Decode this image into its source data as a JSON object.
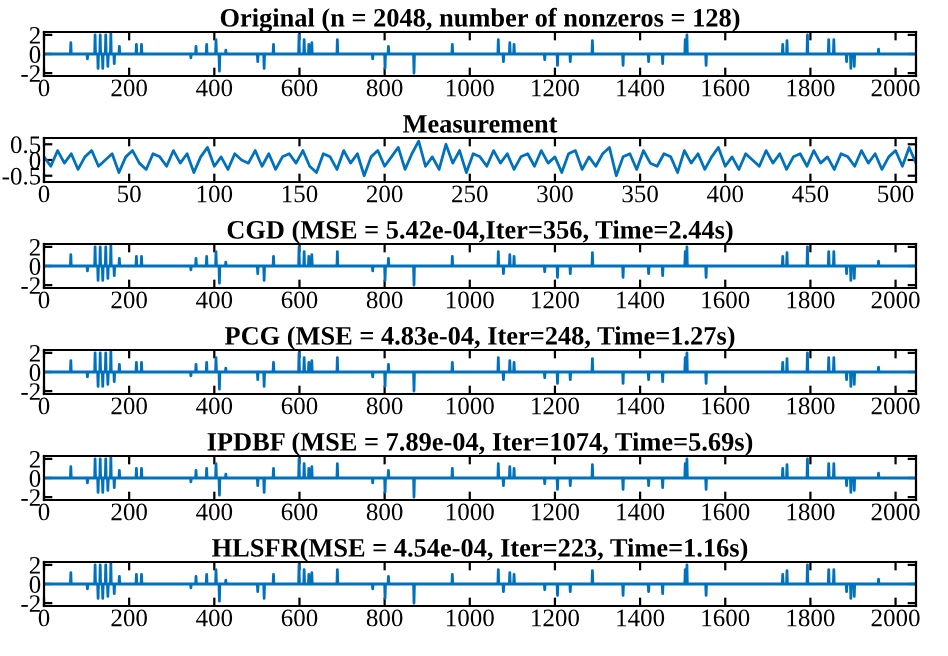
{
  "chart_data": [
    {
      "type": "line",
      "title": "Original (n = 2048, number of nonzeros = 128)",
      "xlim": [
        0,
        2048
      ],
      "xticks": [
        0,
        200,
        400,
        600,
        800,
        1000,
        1200,
        1400,
        1600,
        1800,
        2000
      ],
      "ylim": [
        -2.3,
        2.3
      ],
      "yticks": [
        -2,
        0,
        2
      ],
      "series": [
        {
          "color": "#0072bd",
          "x": [
            0,
            62,
            63,
            64,
            101,
            102,
            103,
            119,
            120,
            121,
            126,
            127,
            128,
            131,
            132,
            133,
            137,
            138,
            139,
            144,
            145,
            146,
            149,
            150,
            151,
            156,
            157,
            158,
            164,
            165,
            166,
            176,
            177,
            178,
            216,
            217,
            218,
            228,
            229,
            230,
            344,
            345,
            346,
            356,
            357,
            358,
            381,
            382,
            383,
            403,
            404,
            405,
            411,
            412,
            413,
            426,
            427,
            428,
            501,
            502,
            503,
            516,
            517,
            518,
            538,
            539,
            540,
            598,
            599,
            600,
            610,
            611,
            612,
            621,
            622,
            623,
            628,
            629,
            630,
            688,
            689,
            690,
            771,
            772,
            773,
            800,
            801,
            802,
            808,
            809,
            810,
            868,
            869,
            870,
            958,
            959,
            960,
            1066,
            1067,
            1068,
            1078,
            1079,
            1080,
            1093,
            1094,
            1095,
            1103,
            1104,
            1105,
            1175,
            1176,
            1177,
            1205,
            1206,
            1207,
            1235,
            1236,
            1237,
            1287,
            1288,
            1289,
            1359,
            1360,
            1361,
            1419,
            1420,
            1421,
            1452,
            1453,
            1454,
            1505,
            1506,
            1507,
            1509,
            1510,
            1511,
            1554,
            1555,
            1556,
            1734,
            1735,
            1736,
            1744,
            1745,
            1746,
            1792,
            1793,
            1794,
            1842,
            1843,
            1844,
            1854,
            1855,
            1856,
            1884,
            1885,
            1886,
            1894,
            1895,
            1896,
            1902,
            1903,
            1904,
            1959,
            1960,
            1961,
            2048
          ],
          "values": [
            0,
            0,
            1.2,
            0,
            0,
            -0.5,
            0,
            0,
            2,
            0,
            0,
            -1.5,
            0,
            0,
            2,
            0,
            0,
            -1.5,
            0,
            0,
            2,
            0,
            0,
            -1.3,
            0,
            0,
            2.2,
            0,
            0,
            -1,
            0,
            0,
            0.8,
            0,
            0,
            1,
            0,
            0,
            1,
            0,
            0,
            -0.4,
            0,
            0,
            0.8,
            0,
            0,
            1,
            0,
            0,
            1.5,
            0,
            0,
            -1.8,
            0,
            0,
            0.4,
            0,
            0,
            -0.8,
            0,
            0,
            -1.5,
            0,
            0,
            1,
            0,
            0,
            2,
            0,
            0,
            1.5,
            0,
            0,
            1,
            0,
            0,
            1.2,
            0,
            0,
            1.5,
            0,
            0,
            -0.5,
            0,
            0,
            -1.5,
            0,
            0,
            0.8,
            0,
            0,
            -2,
            0,
            0,
            1,
            0,
            0,
            1.5,
            0,
            0,
            -0.8,
            0,
            0,
            1.2,
            0,
            0,
            1,
            0,
            0,
            -0.6,
            0,
            0,
            -1.2,
            0,
            0,
            -0.8,
            0,
            0,
            1.4,
            0,
            0,
            -1.2,
            0,
            0,
            -0.8,
            0,
            0,
            -1,
            0,
            0,
            1.5,
            0,
            0,
            2,
            0,
            0,
            -1.2,
            0,
            0,
            1,
            0,
            0,
            1.4,
            0,
            0,
            2,
            0,
            0,
            1.5,
            0,
            0,
            1.5,
            0,
            0,
            -0.8,
            0,
            0,
            -1.5,
            0,
            0,
            -1.3,
            0,
            0,
            0.5,
            0,
            0
          ]
        }
      ]
    },
    {
      "type": "line",
      "title": "Measurement",
      "xlim": [
        0,
        512
      ],
      "xticks": [
        0,
        50,
        100,
        150,
        200,
        250,
        300,
        350,
        400,
        450,
        500
      ],
      "ylim": [
        -0.7,
        0.7
      ],
      "yticks": [
        -0.5,
        0,
        0.5
      ],
      "series": [
        {
          "color": "#0072bd",
          "x": [
            0,
            4,
            8,
            12,
            16,
            20,
            24,
            28,
            32,
            36,
            40,
            44,
            48,
            52,
            56,
            60,
            64,
            68,
            72,
            76,
            80,
            84,
            88,
            92,
            96,
            100,
            104,
            108,
            112,
            116,
            120,
            124,
            128,
            132,
            136,
            140,
            144,
            148,
            152,
            156,
            160,
            164,
            168,
            172,
            176,
            180,
            184,
            188,
            192,
            196,
            200,
            204,
            208,
            212,
            216,
            220,
            224,
            228,
            232,
            236,
            240,
            244,
            248,
            252,
            256,
            260,
            264,
            268,
            272,
            276,
            280,
            284,
            288,
            292,
            296,
            300,
            304,
            308,
            312,
            316,
            320,
            324,
            328,
            332,
            336,
            340,
            344,
            348,
            352,
            356,
            360,
            364,
            368,
            372,
            376,
            380,
            384,
            388,
            392,
            396,
            400,
            404,
            408,
            412,
            416,
            420,
            424,
            428,
            432,
            436,
            440,
            444,
            448,
            452,
            456,
            460,
            464,
            468,
            472,
            476,
            480,
            484,
            488,
            492,
            496,
            500,
            504,
            508,
            512
          ],
          "values": [
            0.1,
            -0.2,
            0.3,
            -0.1,
            0.2,
            -0.3,
            0.1,
            0.3,
            -0.2,
            0.0,
            0.2,
            -0.4,
            0.1,
            0.3,
            -0.1,
            -0.3,
            0.2,
            0.1,
            -0.2,
            0.3,
            -0.1,
            0.2,
            -0.4,
            0.1,
            0.4,
            -0.2,
            0.1,
            -0.3,
            0.2,
            0.0,
            -0.1,
            0.3,
            -0.2,
            0.2,
            -0.3,
            0.1,
            0.2,
            -0.1,
            0.3,
            -0.2,
            -0.4,
            0.2,
            0.1,
            -0.3,
            0.3,
            -0.1,
            0.2,
            -0.5,
            0.1,
            0.3,
            -0.2,
            0.1,
            0.4,
            -0.3,
            0.2,
            0.6,
            -0.2,
            0.1,
            -0.3,
            0.5,
            -0.1,
            0.3,
            -0.4,
            0.2,
            0.1,
            -0.2,
            0.3,
            -0.1,
            0.2,
            -0.3,
            0.1,
            0.2,
            -0.2,
            0.3,
            -0.1,
            0.1,
            -0.4,
            0.2,
            0.3,
            -0.3,
            0.1,
            -0.2,
            0.2,
            0.4,
            -0.5,
            0.1,
            0.2,
            -0.3,
            0.3,
            -0.1,
            -0.2,
            0.2,
            0.1,
            -0.4,
            0.3,
            -0.1,
            0.2,
            -0.3,
            0.1,
            0.4,
            -0.2,
            0.1,
            -0.3,
            0.2,
            0.0,
            -0.2,
            0.3,
            -0.1,
            0.2,
            -0.3,
            0.1,
            0.2,
            -0.2,
            0.3,
            -0.1,
            0.1,
            -0.3,
            0.2,
            0.1,
            -0.2,
            0.3,
            -0.1,
            0.2,
            -0.3,
            0.1,
            0.3,
            -0.2,
            0.4,
            -0.1
          ]
        }
      ]
    },
    {
      "type": "line",
      "title": "CGD (MSE = 5.42e-04,Iter=356, Time=2.44s)",
      "xlim": [
        0,
        2048
      ],
      "xticks": [
        0,
        200,
        400,
        600,
        800,
        1000,
        1200,
        1400,
        1600,
        1800,
        2000
      ],
      "ylim": [
        -2.3,
        2.3
      ],
      "yticks": [
        -2,
        0,
        2
      ],
      "series": [
        {
          "color": "#0072bd",
          "x": [
            0,
            62,
            63,
            64,
            101,
            102,
            103,
            119,
            120,
            121,
            126,
            127,
            128,
            131,
            132,
            133,
            137,
            138,
            139,
            144,
            145,
            146,
            149,
            150,
            151,
            156,
            157,
            158,
            164,
            165,
            166,
            176,
            177,
            178,
            216,
            217,
            218,
            228,
            229,
            230,
            344,
            345,
            346,
            356,
            357,
            358,
            381,
            382,
            383,
            403,
            404,
            405,
            411,
            412,
            413,
            426,
            427,
            428,
            501,
            502,
            503,
            516,
            517,
            518,
            538,
            539,
            540,
            598,
            599,
            600,
            610,
            611,
            612,
            621,
            622,
            623,
            628,
            629,
            630,
            688,
            689,
            690,
            771,
            772,
            773,
            800,
            801,
            802,
            808,
            809,
            810,
            868,
            869,
            870,
            958,
            959,
            960,
            1066,
            1067,
            1068,
            1078,
            1079,
            1080,
            1093,
            1094,
            1095,
            1103,
            1104,
            1105,
            1175,
            1176,
            1177,
            1205,
            1206,
            1207,
            1235,
            1236,
            1237,
            1287,
            1288,
            1289,
            1359,
            1360,
            1361,
            1419,
            1420,
            1421,
            1452,
            1453,
            1454,
            1505,
            1506,
            1507,
            1509,
            1510,
            1511,
            1554,
            1555,
            1556,
            1734,
            1735,
            1736,
            1744,
            1745,
            1746,
            1792,
            1793,
            1794,
            1842,
            1843,
            1844,
            1854,
            1855,
            1856,
            1884,
            1885,
            1886,
            1894,
            1895,
            1896,
            1902,
            1903,
            1904,
            1959,
            1960,
            1961,
            2048
          ],
          "values": [
            0,
            0,
            1.2,
            0,
            0,
            -0.5,
            0,
            0,
            2,
            0,
            0,
            -1.5,
            0,
            0,
            2,
            0,
            0,
            -1.5,
            0,
            0,
            2,
            0,
            0,
            -1.3,
            0,
            0,
            2.2,
            0,
            0,
            -1,
            0,
            0,
            0.8,
            0,
            0,
            1,
            0,
            0,
            1,
            0,
            0,
            -0.4,
            0,
            0,
            0.8,
            0,
            0,
            1,
            0,
            0,
            1.5,
            0,
            0,
            -1.8,
            0,
            0,
            0.4,
            0,
            0,
            -0.8,
            0,
            0,
            -1.5,
            0,
            0,
            1,
            0,
            0,
            2,
            0,
            0,
            1.5,
            0,
            0,
            1,
            0,
            0,
            1.2,
            0,
            0,
            1.5,
            0,
            0,
            -0.5,
            0,
            0,
            -1.5,
            0,
            0,
            0.8,
            0,
            0,
            -2,
            0,
            0,
            1,
            0,
            0,
            1.5,
            0,
            0,
            -0.8,
            0,
            0,
            1.2,
            0,
            0,
            1,
            0,
            0,
            -0.6,
            0,
            0,
            -1.2,
            0,
            0,
            -0.8,
            0,
            0,
            1.4,
            0,
            0,
            -1.2,
            0,
            0,
            -0.8,
            0,
            0,
            -1,
            0,
            0,
            1.5,
            0,
            0,
            2,
            0,
            0,
            -1.2,
            0,
            0,
            1,
            0,
            0,
            1.4,
            0,
            0,
            2,
            0,
            0,
            1.5,
            0,
            0,
            1.5,
            0,
            0,
            -0.8,
            0,
            0,
            -1.5,
            0,
            0,
            -1.3,
            0,
            0,
            0.5,
            0,
            0
          ]
        }
      ]
    },
    {
      "type": "line",
      "title": "PCG (MSE = 4.83e-04, Iter=248, Time=1.27s)",
      "xlim": [
        0,
        2048
      ],
      "xticks": [
        0,
        200,
        400,
        600,
        800,
        1000,
        1200,
        1400,
        1600,
        1800,
        2000
      ],
      "ylim": [
        -2.3,
        2.3
      ],
      "yticks": [
        -2,
        0,
        2
      ],
      "series": [
        {
          "color": "#0072bd",
          "x": [
            0,
            62,
            63,
            64,
            101,
            102,
            103,
            119,
            120,
            121,
            126,
            127,
            128,
            131,
            132,
            133,
            137,
            138,
            139,
            144,
            145,
            146,
            149,
            150,
            151,
            156,
            157,
            158,
            164,
            165,
            166,
            176,
            177,
            178,
            216,
            217,
            218,
            228,
            229,
            230,
            344,
            345,
            346,
            356,
            357,
            358,
            381,
            382,
            383,
            403,
            404,
            405,
            411,
            412,
            413,
            426,
            427,
            428,
            501,
            502,
            503,
            516,
            517,
            518,
            538,
            539,
            540,
            598,
            599,
            600,
            610,
            611,
            612,
            621,
            622,
            623,
            628,
            629,
            630,
            688,
            689,
            690,
            771,
            772,
            773,
            800,
            801,
            802,
            808,
            809,
            810,
            868,
            869,
            870,
            958,
            959,
            960,
            1066,
            1067,
            1068,
            1078,
            1079,
            1080,
            1093,
            1094,
            1095,
            1103,
            1104,
            1105,
            1175,
            1176,
            1177,
            1205,
            1206,
            1207,
            1235,
            1236,
            1237,
            1287,
            1288,
            1289,
            1359,
            1360,
            1361,
            1419,
            1420,
            1421,
            1452,
            1453,
            1454,
            1505,
            1506,
            1507,
            1509,
            1510,
            1511,
            1554,
            1555,
            1556,
            1734,
            1735,
            1736,
            1744,
            1745,
            1746,
            1792,
            1793,
            1794,
            1842,
            1843,
            1844,
            1854,
            1855,
            1856,
            1884,
            1885,
            1886,
            1894,
            1895,
            1896,
            1902,
            1903,
            1904,
            1959,
            1960,
            1961,
            2048
          ],
          "values": [
            0,
            0,
            1.2,
            0,
            0,
            -0.5,
            0,
            0,
            2,
            0,
            0,
            -1.5,
            0,
            0,
            2,
            0,
            0,
            -1.5,
            0,
            0,
            2,
            0,
            0,
            -1.3,
            0,
            0,
            2.2,
            0,
            0,
            -1,
            0,
            0,
            0.8,
            0,
            0,
            1,
            0,
            0,
            1,
            0,
            0,
            -0.4,
            0,
            0,
            0.8,
            0,
            0,
            1,
            0,
            0,
            1.5,
            0,
            0,
            -1.8,
            0,
            0,
            0.4,
            0,
            0,
            -0.8,
            0,
            0,
            -1.5,
            0,
            0,
            1,
            0,
            0,
            2,
            0,
            0,
            1.5,
            0,
            0,
            1,
            0,
            0,
            1.2,
            0,
            0,
            1.5,
            0,
            0,
            -0.5,
            0,
            0,
            -1.5,
            0,
            0,
            0.8,
            0,
            0,
            -2,
            0,
            0,
            1,
            0,
            0,
            1.5,
            0,
            0,
            -0.8,
            0,
            0,
            1.2,
            0,
            0,
            1,
            0,
            0,
            -0.6,
            0,
            0,
            -1.2,
            0,
            0,
            -0.8,
            0,
            0,
            1.4,
            0,
            0,
            -1.2,
            0,
            0,
            -0.8,
            0,
            0,
            -1,
            0,
            0,
            1.5,
            0,
            0,
            2,
            0,
            0,
            -1.2,
            0,
            0,
            1,
            0,
            0,
            1.4,
            0,
            0,
            2,
            0,
            0,
            1.5,
            0,
            0,
            1.5,
            0,
            0,
            -0.8,
            0,
            0,
            -1.5,
            0,
            0,
            -1.3,
            0,
            0,
            0.5,
            0,
            0
          ]
        }
      ]
    },
    {
      "type": "line",
      "title": "IPDBF (MSE = 7.89e-04, Iter=1074, Time=5.69s)",
      "xlim": [
        0,
        2048
      ],
      "xticks": [
        0,
        200,
        400,
        600,
        800,
        1000,
        1200,
        1400,
        1600,
        1800,
        2000
      ],
      "ylim": [
        -2.3,
        2.3
      ],
      "yticks": [
        -2,
        0,
        2
      ],
      "series": [
        {
          "color": "#0072bd",
          "x": [
            0,
            62,
            63,
            64,
            101,
            102,
            103,
            119,
            120,
            121,
            126,
            127,
            128,
            131,
            132,
            133,
            137,
            138,
            139,
            144,
            145,
            146,
            149,
            150,
            151,
            156,
            157,
            158,
            164,
            165,
            166,
            176,
            177,
            178,
            216,
            217,
            218,
            228,
            229,
            230,
            344,
            345,
            346,
            356,
            357,
            358,
            381,
            382,
            383,
            403,
            404,
            405,
            411,
            412,
            413,
            426,
            427,
            428,
            501,
            502,
            503,
            516,
            517,
            518,
            538,
            539,
            540,
            598,
            599,
            600,
            610,
            611,
            612,
            621,
            622,
            623,
            628,
            629,
            630,
            688,
            689,
            690,
            771,
            772,
            773,
            800,
            801,
            802,
            808,
            809,
            810,
            868,
            869,
            870,
            958,
            959,
            960,
            1066,
            1067,
            1068,
            1078,
            1079,
            1080,
            1093,
            1094,
            1095,
            1103,
            1104,
            1105,
            1175,
            1176,
            1177,
            1205,
            1206,
            1207,
            1235,
            1236,
            1237,
            1287,
            1288,
            1289,
            1359,
            1360,
            1361,
            1419,
            1420,
            1421,
            1452,
            1453,
            1454,
            1505,
            1506,
            1507,
            1509,
            1510,
            1511,
            1554,
            1555,
            1556,
            1734,
            1735,
            1736,
            1744,
            1745,
            1746,
            1792,
            1793,
            1794,
            1842,
            1843,
            1844,
            1854,
            1855,
            1856,
            1884,
            1885,
            1886,
            1894,
            1895,
            1896,
            1902,
            1903,
            1904,
            1959,
            1960,
            1961,
            2048
          ],
          "values": [
            0,
            0,
            1.2,
            0,
            0,
            -0.5,
            0,
            0,
            2,
            0,
            0,
            -1.5,
            0,
            0,
            2,
            0,
            0,
            -1.5,
            0,
            0,
            2,
            0,
            0,
            -1.3,
            0,
            0,
            2.2,
            0,
            0,
            -1,
            0,
            0,
            0.8,
            0,
            0,
            1,
            0,
            0,
            1,
            0,
            0,
            -0.4,
            0,
            0,
            0.8,
            0,
            0,
            1,
            0,
            0,
            1.5,
            0,
            0,
            -1.8,
            0,
            0,
            0.4,
            0,
            0,
            -0.8,
            0,
            0,
            -1.5,
            0,
            0,
            1,
            0,
            0,
            2,
            0,
            0,
            1.5,
            0,
            0,
            1,
            0,
            0,
            1.2,
            0,
            0,
            1.5,
            0,
            0,
            -0.5,
            0,
            0,
            -1.5,
            0,
            0,
            0.8,
            0,
            0,
            -2,
            0,
            0,
            1,
            0,
            0,
            1.5,
            0,
            0,
            -0.8,
            0,
            0,
            1.2,
            0,
            0,
            1,
            0,
            0,
            -0.6,
            0,
            0,
            -1.2,
            0,
            0,
            -0.8,
            0,
            0,
            1.4,
            0,
            0,
            -1.2,
            0,
            0,
            -0.8,
            0,
            0,
            -1,
            0,
            0,
            1.5,
            0,
            0,
            2,
            0,
            0,
            -1.2,
            0,
            0,
            1,
            0,
            0,
            1.4,
            0,
            0,
            2,
            0,
            0,
            1.5,
            0,
            0,
            1.5,
            0,
            0,
            -0.8,
            0,
            0,
            -1.5,
            0,
            0,
            -1.3,
            0,
            0,
            0.5,
            0,
            0
          ]
        }
      ]
    },
    {
      "type": "line",
      "title": "HLSFR(MSE = 4.54e-04, Iter=223, Time=1.16s)",
      "xlim": [
        0,
        2048
      ],
      "xticks": [
        0,
        200,
        400,
        600,
        800,
        1000,
        1200,
        1400,
        1600,
        1800,
        2000
      ],
      "ylim": [
        -2.3,
        2.3
      ],
      "yticks": [
        -2,
        0,
        2
      ],
      "series": [
        {
          "color": "#0072bd",
          "x": [
            0,
            62,
            63,
            64,
            101,
            102,
            103,
            119,
            120,
            121,
            126,
            127,
            128,
            131,
            132,
            133,
            137,
            138,
            139,
            144,
            145,
            146,
            149,
            150,
            151,
            156,
            157,
            158,
            164,
            165,
            166,
            176,
            177,
            178,
            216,
            217,
            218,
            228,
            229,
            230,
            344,
            345,
            346,
            356,
            357,
            358,
            381,
            382,
            383,
            403,
            404,
            405,
            411,
            412,
            413,
            426,
            427,
            428,
            501,
            502,
            503,
            516,
            517,
            518,
            538,
            539,
            540,
            598,
            599,
            600,
            610,
            611,
            612,
            621,
            622,
            623,
            628,
            629,
            630,
            688,
            689,
            690,
            771,
            772,
            773,
            800,
            801,
            802,
            808,
            809,
            810,
            868,
            869,
            870,
            958,
            959,
            960,
            1066,
            1067,
            1068,
            1078,
            1079,
            1080,
            1093,
            1094,
            1095,
            1103,
            1104,
            1105,
            1175,
            1176,
            1177,
            1205,
            1206,
            1207,
            1235,
            1236,
            1237,
            1287,
            1288,
            1289,
            1359,
            1360,
            1361,
            1419,
            1420,
            1421,
            1452,
            1453,
            1454,
            1505,
            1506,
            1507,
            1509,
            1510,
            1511,
            1554,
            1555,
            1556,
            1734,
            1735,
            1736,
            1744,
            1745,
            1746,
            1792,
            1793,
            1794,
            1842,
            1843,
            1844,
            1854,
            1855,
            1856,
            1884,
            1885,
            1886,
            1894,
            1895,
            1896,
            1902,
            1903,
            1904,
            1959,
            1960,
            1961,
            2048
          ],
          "values": [
            0,
            0,
            1.2,
            0,
            0,
            -0.5,
            0,
            0,
            2,
            0,
            0,
            -1.5,
            0,
            0,
            2,
            0,
            0,
            -1.5,
            0,
            0,
            2,
            0,
            0,
            -1.3,
            0,
            0,
            2.2,
            0,
            0,
            -1,
            0,
            0,
            0.8,
            0,
            0,
            1,
            0,
            0,
            1,
            0,
            0,
            -0.4,
            0,
            0,
            0.8,
            0,
            0,
            1,
            0,
            0,
            1.5,
            0,
            0,
            -1.8,
            0,
            0,
            0.4,
            0,
            0,
            -0.8,
            0,
            0,
            -1.5,
            0,
            0,
            1,
            0,
            0,
            2,
            0,
            0,
            1.5,
            0,
            0,
            1,
            0,
            0,
            1.2,
            0,
            0,
            1.5,
            0,
            0,
            -0.5,
            0,
            0,
            -1.5,
            0,
            0,
            0.8,
            0,
            0,
            -2,
            0,
            0,
            1,
            0,
            0,
            1.5,
            0,
            0,
            -0.8,
            0,
            0,
            1.2,
            0,
            0,
            1,
            0,
            0,
            -0.6,
            0,
            0,
            -1.2,
            0,
            0,
            -0.8,
            0,
            0,
            1.4,
            0,
            0,
            -1.2,
            0,
            0,
            -0.8,
            0,
            0,
            -1,
            0,
            0,
            1.5,
            0,
            0,
            2,
            0,
            0,
            -1.2,
            0,
            0,
            1,
            0,
            0,
            1.4,
            0,
            0,
            2,
            0,
            0,
            1.5,
            0,
            0,
            1.5,
            0,
            0,
            -0.8,
            0,
            0,
            -1.5,
            0,
            0,
            -1.3,
            0,
            0,
            0.5,
            0,
            0
          ]
        }
      ]
    }
  ]
}
